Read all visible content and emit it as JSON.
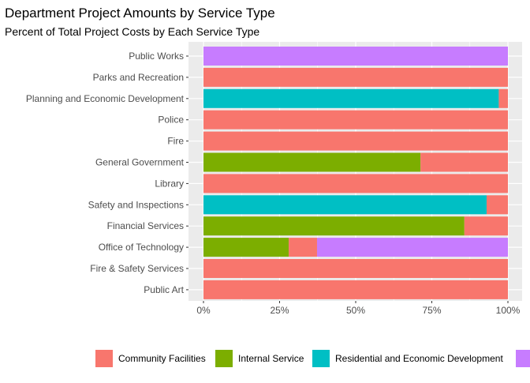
{
  "chart_data": {
    "type": "bar",
    "orientation": "horizontal",
    "stacked": true,
    "title": "Department Project Amounts by Service Type",
    "subtitle": "Percent of Total Project Costs by Each Service Type",
    "xlabel": "",
    "ylabel": "",
    "xlim": [
      0,
      1
    ],
    "x_ticks": [
      "0%",
      "25%",
      "50%",
      "75%",
      "100%"
    ],
    "grid": true,
    "legend_position": "bottom",
    "categories": [
      "Public Works",
      "Parks and Recreation",
      "Planning and Economic Development",
      "Police",
      "Fire",
      "General Government",
      "Library",
      "Safety and Inspections",
      "Financial Services",
      "Office of Technology",
      "Fire & Safety Services",
      "Public Art"
    ],
    "series": [
      {
        "name": "Community Facilities",
        "color": "#F8766D",
        "values": [
          0,
          1.0,
          0.03,
          1.0,
          1.0,
          0.287,
          1.0,
          0.07,
          0.143,
          0.093,
          1.0,
          1.0
        ]
      },
      {
        "name": "Internal Service",
        "color": "#7CAE00",
        "values": [
          0,
          0,
          0,
          0,
          0,
          0.713,
          0,
          0,
          0.857,
          0.28,
          0,
          0
        ]
      },
      {
        "name": "Residential and Economic Development",
        "color": "#00BFC4",
        "values": [
          0,
          0,
          0.97,
          0,
          0,
          0,
          0,
          0.93,
          0,
          0,
          0,
          0
        ]
      },
      {
        "name": "",
        "color": "#C77CFF",
        "values": [
          1.0,
          0,
          0,
          0,
          0,
          0,
          0,
          0,
          0,
          0.627,
          0,
          0
        ]
      }
    ],
    "stack_order": [
      "Residential and Economic Development",
      "Internal Service",
      "Community Facilities"
    ]
  }
}
